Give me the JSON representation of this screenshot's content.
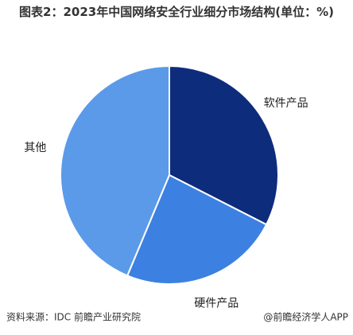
{
  "chart_data": {
    "type": "pie",
    "title": "图表2：2023年中国网络安全行业细分市场结构(单位：%)",
    "categories": [
      "软件产品",
      "硬件产品",
      "其他"
    ],
    "values": [
      32.5,
      23.8,
      43.7
    ],
    "colors": [
      "#0e2c7c",
      "#3c80e2",
      "#5b9ae8"
    ],
    "source": "资料来源：IDC 前瞻产业研究院",
    "credit": "@前瞻经济学人APP"
  }
}
